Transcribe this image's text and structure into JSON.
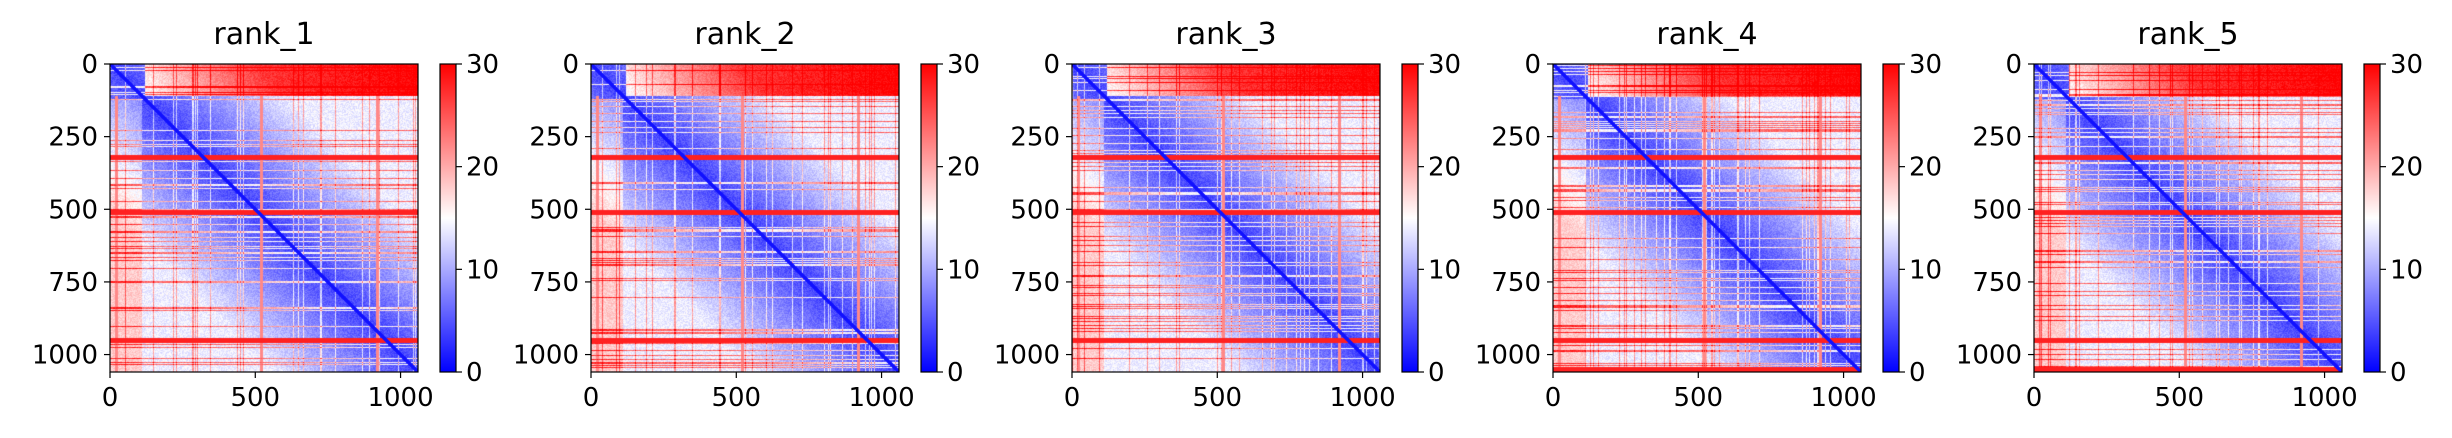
{
  "chart_data": [
    {
      "type": "heatmap",
      "title": "rank_1",
      "x_ticks": [
        "0",
        "500",
        "1000"
      ],
      "y_ticks": [
        "0",
        "250",
        "500",
        "750",
        "1000"
      ],
      "x_range": [
        0,
        1060
      ],
      "y_range": [
        0,
        1060
      ],
      "colorbar": {
        "ticks": [
          "0",
          "10",
          "20",
          "30"
        ],
        "range": [
          0,
          30
        ],
        "colormap": "bwr"
      },
      "bands": {
        "rows": [
          320,
          510,
          950
        ],
        "cols": [
          20,
          520,
          920
        ]
      }
    },
    {
      "type": "heatmap",
      "title": "rank_2",
      "x_ticks": [
        "0",
        "500",
        "1000"
      ],
      "y_ticks": [
        "0",
        "250",
        "500",
        "750",
        "1000"
      ],
      "x_range": [
        0,
        1060
      ],
      "y_range": [
        0,
        1060
      ],
      "colorbar": {
        "ticks": [
          "0",
          "10",
          "20",
          "30"
        ],
        "range": [
          0,
          30
        ],
        "colormap": "bwr"
      },
      "bands": {
        "rows": [
          320,
          510,
          950
        ],
        "cols": [
          20,
          520,
          920
        ]
      }
    },
    {
      "type": "heatmap",
      "title": "rank_3",
      "x_ticks": [
        "0",
        "500",
        "1000"
      ],
      "y_ticks": [
        "0",
        "250",
        "500",
        "750",
        "1000"
      ],
      "x_range": [
        0,
        1060
      ],
      "y_range": [
        0,
        1060
      ],
      "colorbar": {
        "ticks": [
          "0",
          "10",
          "20",
          "30"
        ],
        "range": [
          0,
          30
        ],
        "colormap": "bwr"
      },
      "bands": {
        "rows": [
          320,
          510,
          950
        ],
        "cols": [
          20,
          520,
          920
        ]
      }
    },
    {
      "type": "heatmap",
      "title": "rank_4",
      "x_ticks": [
        "0",
        "500",
        "1000"
      ],
      "y_ticks": [
        "0",
        "250",
        "500",
        "750",
        "1000"
      ],
      "x_range": [
        0,
        1060
      ],
      "y_range": [
        0,
        1060
      ],
      "colorbar": {
        "ticks": [
          "0",
          "10",
          "20",
          "30"
        ],
        "range": [
          0,
          30
        ],
        "colormap": "bwr"
      },
      "bands": {
        "rows": [
          320,
          510,
          950,
          1050
        ],
        "cols": [
          20,
          520,
          920
        ]
      }
    },
    {
      "type": "heatmap",
      "title": "rank_5",
      "x_ticks": [
        "0",
        "500",
        "1000"
      ],
      "y_ticks": [
        "0",
        "250",
        "500",
        "750",
        "1000"
      ],
      "x_range": [
        0,
        1060
      ],
      "y_range": [
        0,
        1060
      ],
      "colorbar": {
        "ticks": [
          "0",
          "10",
          "20",
          "30"
        ],
        "range": [
          0,
          30
        ],
        "colormap": "bwr"
      },
      "bands": {
        "rows": [
          320,
          510,
          950,
          1050
        ],
        "cols": [
          20,
          520,
          920
        ]
      }
    }
  ]
}
